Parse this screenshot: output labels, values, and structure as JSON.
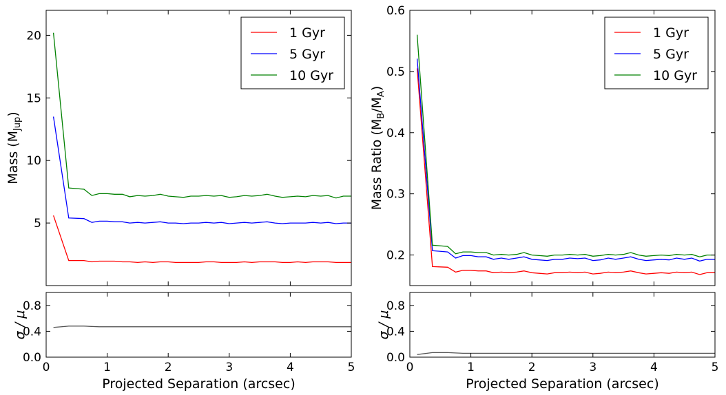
{
  "chart_data": [
    {
      "type": "line",
      "id": "left-top",
      "ylabel_main": "Mass (M",
      "ylabel_sub": "Jup",
      "ylabel_end": ")",
      "xlabel": "",
      "xlim": [
        0,
        5
      ],
      "ylim": [
        0,
        22
      ],
      "yticks": [
        5,
        10,
        15,
        20
      ],
      "ytick_labels": [
        "5",
        "10",
        "15",
        "20"
      ],
      "legend_position": "top-right",
      "series": [
        {
          "name": "1 Gyr",
          "color": "#ff0000",
          "x": [
            0.12,
            0.37,
            0.62,
            0.75,
            0.87,
            1.0,
            1.12,
            1.25,
            1.37,
            1.5,
            1.62,
            1.75,
            1.87,
            2.0,
            2.12,
            2.25,
            2.37,
            2.5,
            2.62,
            2.75,
            2.87,
            3.0,
            3.12,
            3.25,
            3.37,
            3.5,
            3.62,
            3.75,
            3.87,
            4.0,
            4.12,
            4.25,
            4.37,
            4.5,
            4.62,
            4.75,
            4.87,
            5.0
          ],
          "y": [
            5.6,
            2.0,
            2.0,
            1.9,
            1.95,
            1.95,
            1.95,
            1.9,
            1.9,
            1.85,
            1.9,
            1.85,
            1.9,
            1.9,
            1.85,
            1.85,
            1.85,
            1.85,
            1.9,
            1.9,
            1.85,
            1.85,
            1.85,
            1.9,
            1.85,
            1.9,
            1.9,
            1.9,
            1.85,
            1.85,
            1.9,
            1.85,
            1.9,
            1.9,
            1.9,
            1.85,
            1.85,
            1.85
          ]
        },
        {
          "name": "5 Gyr",
          "color": "#0000ff",
          "x": [
            0.12,
            0.37,
            0.62,
            0.75,
            0.87,
            1.0,
            1.12,
            1.25,
            1.37,
            1.5,
            1.62,
            1.75,
            1.87,
            2.0,
            2.12,
            2.25,
            2.37,
            2.5,
            2.62,
            2.75,
            2.87,
            3.0,
            3.12,
            3.25,
            3.37,
            3.5,
            3.62,
            3.75,
            3.87,
            4.0,
            4.12,
            4.25,
            4.37,
            4.5,
            4.62,
            4.75,
            4.87,
            5.0
          ],
          "y": [
            13.5,
            5.4,
            5.35,
            5.05,
            5.15,
            5.15,
            5.1,
            5.1,
            5.0,
            5.05,
            5.0,
            5.05,
            5.1,
            5.0,
            5.0,
            4.95,
            5.0,
            5.0,
            5.05,
            5.0,
            5.05,
            4.95,
            5.0,
            5.05,
            5.0,
            5.05,
            5.1,
            5.0,
            4.95,
            5.0,
            5.0,
            5.0,
            5.05,
            5.0,
            5.05,
            4.95,
            5.0,
            5.0
          ]
        },
        {
          "name": "10 Gyr",
          "color": "#008000",
          "x": [
            0.12,
            0.37,
            0.62,
            0.75,
            0.87,
            1.0,
            1.12,
            1.25,
            1.37,
            1.5,
            1.62,
            1.75,
            1.87,
            2.0,
            2.12,
            2.25,
            2.37,
            2.5,
            2.62,
            2.75,
            2.87,
            3.0,
            3.12,
            3.25,
            3.37,
            3.5,
            3.62,
            3.75,
            3.87,
            4.0,
            4.12,
            4.25,
            4.37,
            4.5,
            4.62,
            4.75,
            4.87,
            5.0
          ],
          "y": [
            20.2,
            7.8,
            7.7,
            7.2,
            7.35,
            7.35,
            7.3,
            7.3,
            7.1,
            7.2,
            7.15,
            7.2,
            7.3,
            7.15,
            7.1,
            7.05,
            7.15,
            7.15,
            7.2,
            7.15,
            7.2,
            7.05,
            7.1,
            7.2,
            7.15,
            7.2,
            7.3,
            7.15,
            7.05,
            7.1,
            7.15,
            7.1,
            7.2,
            7.15,
            7.2,
            7.0,
            7.15,
            7.15
          ]
        }
      ]
    },
    {
      "type": "line",
      "id": "left-bottom",
      "ylabel": "σ / μ",
      "xlabel": "Projected Separation (arcsec)",
      "xlim": [
        0,
        5
      ],
      "ylim": [
        0,
        1
      ],
      "xticks": [
        0,
        1,
        2,
        3,
        4,
        5
      ],
      "xtick_labels": [
        "0",
        "1",
        "2",
        "3",
        "4",
        "5"
      ],
      "yticks": [
        0.0,
        0.4,
        0.8
      ],
      "ytick_labels": [
        "0.0",
        "0.4",
        "0.8"
      ],
      "series": [
        {
          "name": "sigma-mu",
          "color": "#555555",
          "x": [
            0.12,
            0.37,
            0.62,
            0.87,
            1.25,
            2.0,
            3.0,
            4.0,
            5.0
          ],
          "y": [
            0.46,
            0.48,
            0.48,
            0.47,
            0.47,
            0.47,
            0.47,
            0.47,
            0.47
          ]
        }
      ]
    },
    {
      "type": "line",
      "id": "right-top",
      "ylabel_main": "Mass Ratio (M",
      "ylabel_sub": "B",
      "ylabel_mid": "/M",
      "ylabel_sub2": "A",
      "ylabel_end": ")",
      "xlabel": "",
      "xlim": [
        0,
        5
      ],
      "ylim": [
        0.15,
        0.6
      ],
      "yticks": [
        0.2,
        0.3,
        0.4,
        0.5,
        0.6
      ],
      "ytick_labels": [
        "0.2",
        "0.3",
        "0.4",
        "0.5",
        "0.6"
      ],
      "legend_position": "top-right",
      "series": [
        {
          "name": "1 Gyr",
          "color": "#ff0000",
          "x": [
            0.12,
            0.37,
            0.62,
            0.75,
            0.87,
            1.0,
            1.12,
            1.25,
            1.37,
            1.5,
            1.62,
            1.75,
            1.87,
            2.0,
            2.12,
            2.25,
            2.37,
            2.5,
            2.62,
            2.75,
            2.87,
            3.0,
            3.12,
            3.25,
            3.37,
            3.5,
            3.62,
            3.75,
            3.87,
            4.0,
            4.12,
            4.25,
            4.37,
            4.5,
            4.62,
            4.75,
            4.87,
            5.0
          ],
          "y": [
            0.505,
            0.181,
            0.18,
            0.172,
            0.175,
            0.175,
            0.174,
            0.174,
            0.171,
            0.172,
            0.171,
            0.172,
            0.174,
            0.171,
            0.17,
            0.169,
            0.171,
            0.171,
            0.172,
            0.171,
            0.172,
            0.169,
            0.17,
            0.172,
            0.171,
            0.172,
            0.174,
            0.171,
            0.169,
            0.17,
            0.171,
            0.17,
            0.172,
            0.171,
            0.172,
            0.168,
            0.171,
            0.171
          ]
        },
        {
          "name": "5 Gyr",
          "color": "#0000ff",
          "x": [
            0.12,
            0.37,
            0.62,
            0.75,
            0.87,
            1.0,
            1.12,
            1.25,
            1.37,
            1.5,
            1.62,
            1.75,
            1.87,
            2.0,
            2.12,
            2.25,
            2.37,
            2.5,
            2.62,
            2.75,
            2.87,
            3.0,
            3.12,
            3.25,
            3.37,
            3.5,
            3.62,
            3.75,
            3.87,
            4.0,
            4.12,
            4.25,
            4.37,
            4.5,
            4.62,
            4.75,
            4.87,
            5.0
          ],
          "y": [
            0.521,
            0.207,
            0.205,
            0.195,
            0.199,
            0.199,
            0.197,
            0.197,
            0.193,
            0.195,
            0.193,
            0.195,
            0.197,
            0.193,
            0.192,
            0.191,
            0.193,
            0.193,
            0.195,
            0.194,
            0.195,
            0.191,
            0.192,
            0.195,
            0.193,
            0.195,
            0.197,
            0.193,
            0.191,
            0.192,
            0.193,
            0.192,
            0.195,
            0.193,
            0.195,
            0.19,
            0.193,
            0.193
          ]
        },
        {
          "name": "10 Gyr",
          "color": "#008000",
          "x": [
            0.12,
            0.37,
            0.62,
            0.75,
            0.87,
            1.0,
            1.12,
            1.25,
            1.37,
            1.5,
            1.62,
            1.75,
            1.87,
            2.0,
            2.12,
            2.25,
            2.37,
            2.5,
            2.62,
            2.75,
            2.87,
            3.0,
            3.12,
            3.25,
            3.37,
            3.5,
            3.62,
            3.75,
            3.87,
            4.0,
            4.12,
            4.25,
            4.37,
            4.5,
            4.62,
            4.75,
            4.87,
            5.0
          ],
          "y": [
            0.56,
            0.216,
            0.214,
            0.202,
            0.205,
            0.205,
            0.204,
            0.204,
            0.2,
            0.201,
            0.2,
            0.201,
            0.204,
            0.2,
            0.199,
            0.198,
            0.2,
            0.2,
            0.201,
            0.2,
            0.201,
            0.198,
            0.199,
            0.201,
            0.2,
            0.201,
            0.204,
            0.2,
            0.198,
            0.199,
            0.2,
            0.199,
            0.201,
            0.2,
            0.201,
            0.197,
            0.2,
            0.2
          ]
        }
      ]
    },
    {
      "type": "line",
      "id": "right-bottom",
      "ylabel": "σ / μ",
      "xlabel": "Projected Separation (arcsec)",
      "xlim": [
        0,
        5
      ],
      "ylim": [
        0,
        1
      ],
      "xticks": [
        0,
        1,
        2,
        3,
        4,
        5
      ],
      "xtick_labels": [
        "0",
        "1",
        "2",
        "3",
        "4",
        "5"
      ],
      "yticks": [
        0.0,
        0.4,
        0.8
      ],
      "ytick_labels": [
        "0.0",
        "0.4",
        "0.8"
      ],
      "series": [
        {
          "name": "sigma-mu",
          "color": "#555555",
          "x": [
            0.12,
            0.37,
            0.62,
            0.87,
            1.25,
            2.0,
            3.0,
            4.0,
            5.0
          ],
          "y": [
            0.04,
            0.07,
            0.07,
            0.06,
            0.06,
            0.06,
            0.06,
            0.06,
            0.06
          ]
        }
      ]
    }
  ]
}
